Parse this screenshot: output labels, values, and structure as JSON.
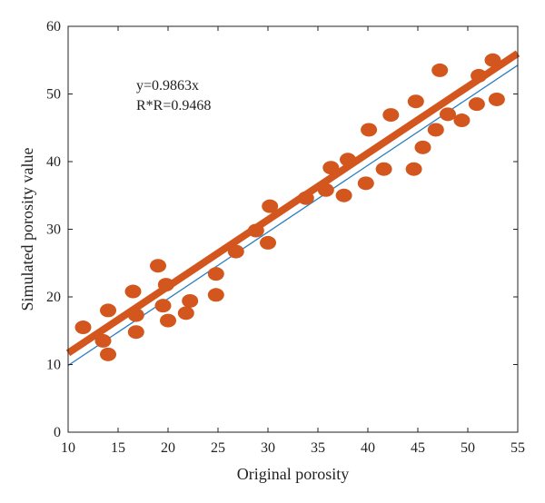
{
  "chart_data": {
    "type": "scatter",
    "xlabel": "Original porosity",
    "ylabel": "Simulated porosity value",
    "xlim": [
      10,
      55
    ],
    "ylim": [
      0,
      60
    ],
    "xticks": [
      10,
      15,
      20,
      25,
      30,
      35,
      40,
      45,
      50,
      55
    ],
    "yticks": [
      0,
      10,
      20,
      30,
      40,
      50,
      60
    ],
    "grid": false,
    "annotations": [
      "y=0.9863x",
      "R*R=0.9468"
    ],
    "points": [
      {
        "x": 11.5,
        "y": 15.5
      },
      {
        "x": 13.5,
        "y": 13.5
      },
      {
        "x": 14.0,
        "y": 11.5
      },
      {
        "x": 14.0,
        "y": 18.0
      },
      {
        "x": 16.5,
        "y": 20.8
      },
      {
        "x": 16.8,
        "y": 17.3
      },
      {
        "x": 16.8,
        "y": 14.8
      },
      {
        "x": 19.0,
        "y": 24.6
      },
      {
        "x": 19.5,
        "y": 18.7
      },
      {
        "x": 19.8,
        "y": 21.8
      },
      {
        "x": 20.0,
        "y": 16.5
      },
      {
        "x": 21.8,
        "y": 17.6
      },
      {
        "x": 22.2,
        "y": 19.4
      },
      {
        "x": 24.8,
        "y": 23.4
      },
      {
        "x": 24.8,
        "y": 20.3
      },
      {
        "x": 26.8,
        "y": 26.7
      },
      {
        "x": 28.8,
        "y": 29.8
      },
      {
        "x": 30.0,
        "y": 28.0
      },
      {
        "x": 30.2,
        "y": 33.4
      },
      {
        "x": 33.8,
        "y": 34.6
      },
      {
        "x": 35.8,
        "y": 35.8
      },
      {
        "x": 36.3,
        "y": 39.1
      },
      {
        "x": 37.6,
        "y": 35.0
      },
      {
        "x": 38.0,
        "y": 40.3
      },
      {
        "x": 39.8,
        "y": 36.8
      },
      {
        "x": 40.1,
        "y": 44.7
      },
      {
        "x": 41.6,
        "y": 38.9
      },
      {
        "x": 42.3,
        "y": 46.9
      },
      {
        "x": 44.6,
        "y": 38.9
      },
      {
        "x": 44.8,
        "y": 48.9
      },
      {
        "x": 45.5,
        "y": 42.1
      },
      {
        "x": 46.8,
        "y": 44.7
      },
      {
        "x": 47.2,
        "y": 53.5
      },
      {
        "x": 48.0,
        "y": 47.0
      },
      {
        "x": 49.4,
        "y": 46.1
      },
      {
        "x": 50.9,
        "y": 48.5
      },
      {
        "x": 51.1,
        "y": 52.7
      },
      {
        "x": 52.5,
        "y": 55.0
      },
      {
        "x": 52.9,
        "y": 49.2
      }
    ],
    "fit_line": {
      "x": [
        10,
        55
      ],
      "y": [
        11.7,
        56.0
      ],
      "color": "#d2561d"
    },
    "reference_line": {
      "x": [
        10,
        55
      ],
      "y": [
        9.863,
        54.25
      ],
      "color": "#2a7fc1"
    },
    "point_color": "#d2561d"
  }
}
